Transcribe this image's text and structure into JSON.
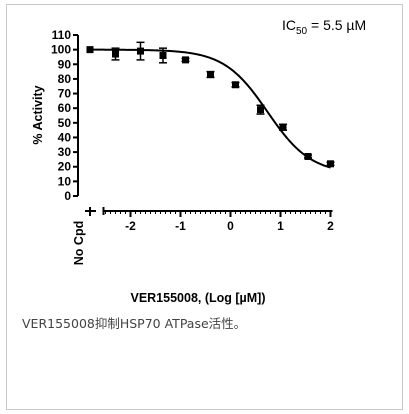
{
  "chart_data": {
    "type": "scatter",
    "annotation": {
      "prefix": "IC",
      "subscript": "50",
      "suffix": " = 5.5 µM"
    },
    "xlabel": "VER155008, (Log [µM])",
    "ylabel": "% Activity",
    "x_break_label": "No Cpd",
    "xlim": [
      -2.5,
      2.0
    ],
    "ylim": [
      0,
      110
    ],
    "x_ticks": [
      -2,
      -1,
      0,
      1,
      2
    ],
    "y_ticks": [
      0,
      10,
      20,
      30,
      40,
      50,
      60,
      70,
      80,
      90,
      100,
      110
    ],
    "x_minor_step": 0.1,
    "no_cpd_point": {
      "y": 100
    },
    "series": [
      {
        "points": [
          {
            "x": -2.3,
            "y": 97,
            "err": 4
          },
          {
            "x": -1.8,
            "y": 99,
            "err": 6
          },
          {
            "x": -1.35,
            "y": 96,
            "err": 5
          },
          {
            "x": -0.9,
            "y": 93,
            "err": 1
          },
          {
            "x": -0.4,
            "y": 83,
            "err": 2
          },
          {
            "x": 0.1,
            "y": 76,
            "err": 1.5
          },
          {
            "x": 0.6,
            "y": 59,
            "err": 3
          },
          {
            "x": 1.05,
            "y": 47,
            "err": 2
          },
          {
            "x": 1.55,
            "y": 27,
            "err": 1
          },
          {
            "x": 2.0,
            "y": 22,
            "err": 1
          }
        ]
      }
    ],
    "fit": {
      "top": 100,
      "bottom": 15,
      "log_ic50": 0.74,
      "hill": 1.0
    },
    "grid": false,
    "legend": "none"
  },
  "caption": "VER155008抑制HSP70 ATPase活性。"
}
